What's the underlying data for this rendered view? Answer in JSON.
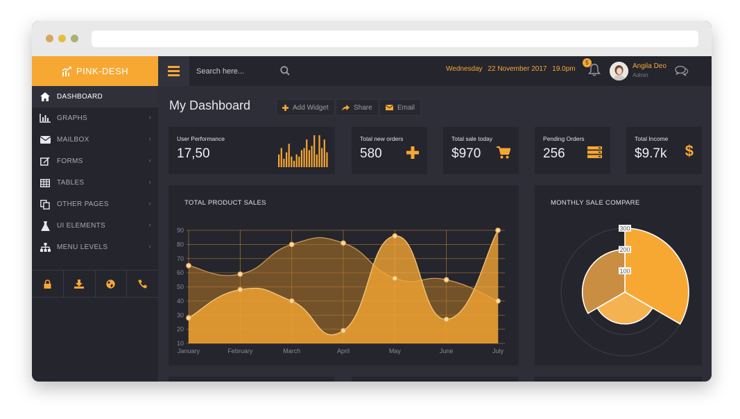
{
  "brand": {
    "name": "PINK-DESH"
  },
  "sidebar": {
    "items": [
      {
        "label": "DASHBOARD",
        "icon": "home-icon",
        "active": true
      },
      {
        "label": "GRAPHS",
        "icon": "bar-chart-icon"
      },
      {
        "label": "MAILBOX",
        "icon": "envelope-icon"
      },
      {
        "label": "FORMS",
        "icon": "edit-icon"
      },
      {
        "label": "TABLES",
        "icon": "table-icon"
      },
      {
        "label": "OTHER PAGES",
        "icon": "copy-icon"
      },
      {
        "label": "UI ELEMENTS",
        "icon": "flask-icon"
      },
      {
        "label": "MENU LEVELS",
        "icon": "sitemap-icon"
      }
    ],
    "tools": [
      "lock-icon",
      "download-icon",
      "globe-icon",
      "phone-icon"
    ]
  },
  "topbar": {
    "search_placeholder": "Search here...",
    "day": "Wednesday",
    "date": "22 November 2017",
    "time": "19.0pm",
    "notification_count": "5",
    "user_name": "Angila Deo",
    "user_role": "Admin"
  },
  "main": {
    "title": "My Dashboard",
    "actions": [
      {
        "label": "Add Widget",
        "icon": "plus-icon"
      },
      {
        "label": "Share",
        "icon": "share-icon"
      },
      {
        "label": "Email",
        "icon": "envelope-icon"
      }
    ]
  },
  "stats": [
    {
      "label": "User Performance",
      "value": "17,50",
      "icon": "mini-bar-chart"
    },
    {
      "label": "Total new orders",
      "value": "580",
      "icon": "plus-icon"
    },
    {
      "label": "Total sale today",
      "value": "$970",
      "icon": "cart-icon"
    },
    {
      "label": "Pending Orders",
      "value": "256",
      "icon": "server-icon"
    },
    {
      "label": "Total Income",
      "value": "$9.7k",
      "icon": "dollar-icon"
    }
  ],
  "accent_color": "#f7a833",
  "chart_data": [
    {
      "type": "area",
      "title": "TOTAL PRODUCT SALES",
      "categories": [
        "January",
        "February",
        "March",
        "April",
        "May",
        "June",
        "July"
      ],
      "yticks": [
        10,
        20,
        30,
        40,
        50,
        60,
        70,
        80,
        90
      ],
      "ylim": [
        10,
        90
      ],
      "grid": true,
      "series": [
        {
          "values": [
            65,
            59,
            80,
            81,
            56,
            55,
            40
          ]
        },
        {
          "values": [
            28,
            48,
            40,
            19,
            86,
            27,
            90
          ]
        }
      ]
    },
    {
      "type": "polar-area",
      "title": "MONTHLY SALE COMPARE",
      "ticks": [
        100,
        200,
        300
      ],
      "max": 300,
      "values": [
        300,
        150,
        200
      ]
    },
    {
      "type": "bar",
      "values": [
        6,
        9,
        4,
        7,
        11,
        5,
        3,
        6,
        5,
        8,
        9,
        13,
        8,
        10,
        15,
        6,
        15,
        9,
        13,
        7
      ]
    }
  ]
}
